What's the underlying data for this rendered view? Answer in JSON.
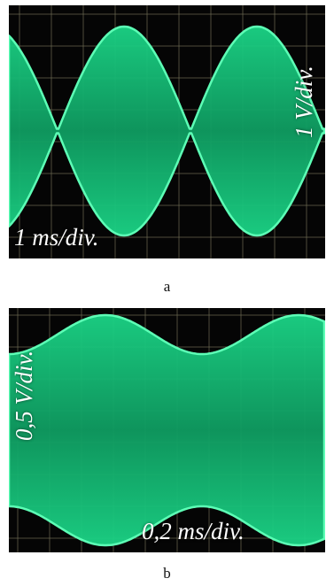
{
  "panels": [
    {
      "id": "a",
      "caption": "a",
      "time_scale": "1 ms/div.",
      "volt_scale": "1 V/div."
    },
    {
      "id": "b",
      "caption": "b",
      "time_scale": "0,2 ms/div.",
      "volt_scale": "0,5 V/div."
    }
  ],
  "colors": {
    "trace": "#19e38a",
    "trace_fill": "#14b873",
    "grid": "#6d6a52",
    "screen": "#050505"
  }
}
